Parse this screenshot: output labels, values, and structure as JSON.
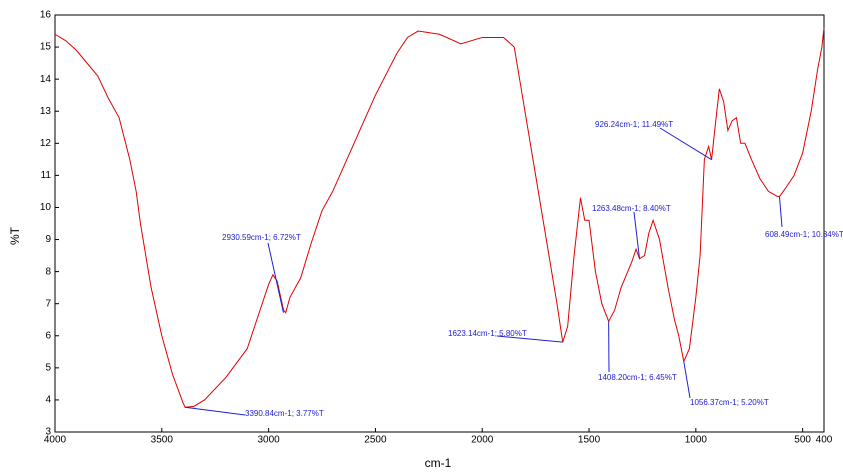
{
  "chart_data": {
    "type": "line",
    "xlabel": "cm-1",
    "ylabel": "%T",
    "xlim": [
      4000,
      400
    ],
    "ylim": [
      3,
      16
    ],
    "xticks": [
      4000,
      3500,
      3000,
      2500,
      2000,
      1500,
      1000,
      500,
      400
    ],
    "yticks": [
      3,
      4,
      5,
      6,
      7,
      8,
      9,
      10,
      11,
      12,
      13,
      14,
      15,
      16
    ],
    "series": [
      {
        "color": "#e00000",
        "x": [
          4000,
          3950,
          3900,
          3850,
          3800,
          3750,
          3700,
          3650,
          3620,
          3600,
          3550,
          3500,
          3450,
          3400,
          3390.84,
          3350,
          3300,
          3200,
          3100,
          3000,
          2980,
          2960,
          2930,
          2920,
          2900,
          2850,
          2800,
          2750,
          2700,
          2600,
          2500,
          2400,
          2350,
          2300,
          2200,
          2100,
          2000,
          1900,
          1850,
          1800,
          1750,
          1700,
          1650,
          1623.14,
          1600,
          1570,
          1540,
          1520,
          1500,
          1470,
          1440,
          1408.2,
          1380,
          1350,
          1300,
          1280,
          1263.48,
          1240,
          1220,
          1200,
          1170,
          1130,
          1100,
          1080,
          1056.37,
          1030,
          1000,
          980,
          960,
          940,
          926.24,
          910,
          890,
          870,
          850,
          830,
          810,
          790,
          770,
          740,
          700,
          660,
          620,
          608.49,
          580,
          540,
          500,
          460,
          430,
          410,
          400
        ],
        "values": [
          15.4,
          15.2,
          14.9,
          14.5,
          14.1,
          13.4,
          12.8,
          11.5,
          10.5,
          9.5,
          7.5,
          6.0,
          4.8,
          3.9,
          3.77,
          3.8,
          4.0,
          4.7,
          5.6,
          7.6,
          7.9,
          7.7,
          6.8,
          6.72,
          7.2,
          7.8,
          8.9,
          9.9,
          10.5,
          12.0,
          13.5,
          14.8,
          15.3,
          15.5,
          15.4,
          15.1,
          15.3,
          15.3,
          15.0,
          13.0,
          11.0,
          9.0,
          7.0,
          5.8,
          6.3,
          8.5,
          10.3,
          9.6,
          9.6,
          8.0,
          7.0,
          6.45,
          6.8,
          7.5,
          8.3,
          8.7,
          8.4,
          8.5,
          9.2,
          9.6,
          9.0,
          7.5,
          6.5,
          6.0,
          5.2,
          5.6,
          7.2,
          8.5,
          11.5,
          11.9,
          11.49,
          12.5,
          13.7,
          13.3,
          12.4,
          12.7,
          12.8,
          12.0,
          12.0,
          11.5,
          10.9,
          10.5,
          10.35,
          10.34,
          10.6,
          11.0,
          11.7,
          13.0,
          14.3,
          15.0,
          15.6
        ]
      }
    ],
    "annotations": [
      {
        "text": "3390.84cm-1; 3.77%T",
        "x": 3390.84,
        "y": 3.77
      },
      {
        "text": "2930.59cm-1; 6.72%T",
        "x": 2930.59,
        "y": 6.72
      },
      {
        "text": "1623.14cm-1; 5.80%T",
        "x": 1623.14,
        "y": 5.8
      },
      {
        "text": "1408.20cm-1; 6.45%T",
        "x": 1408.2,
        "y": 6.45
      },
      {
        "text": "1263.48cm-1; 8.40%T",
        "x": 1263.48,
        "y": 8.4
      },
      {
        "text": "1056.37cm-1; 5.20%T",
        "x": 1056.37,
        "y": 5.2
      },
      {
        "text": "926.24cm-1; 11.49%T",
        "x": 926.24,
        "y": 11.49
      },
      {
        "text": "608.49cm-1; 10.34%T",
        "x": 608.49,
        "y": 10.34
      }
    ]
  }
}
